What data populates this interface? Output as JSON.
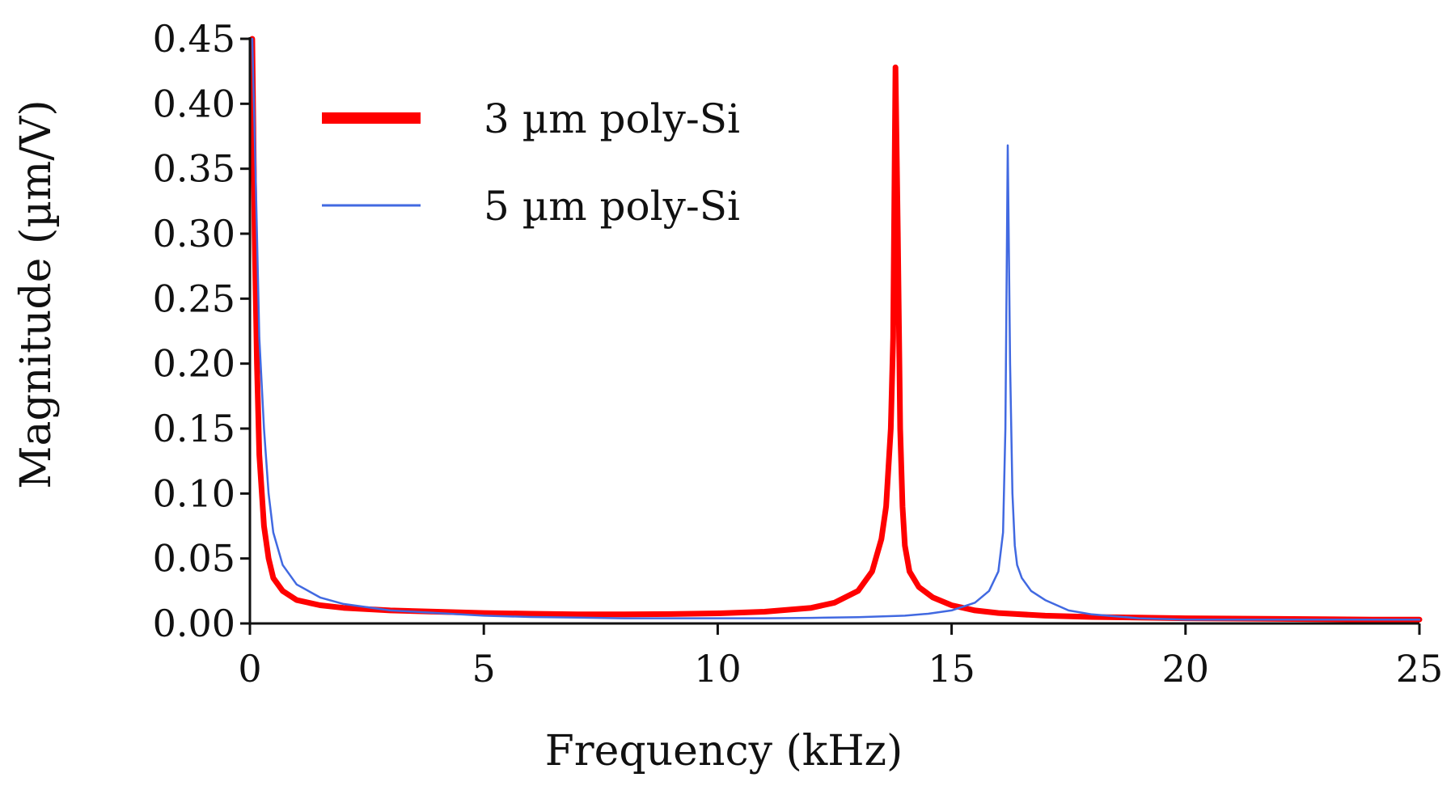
{
  "chart_data": {
    "type": "line",
    "title": "",
    "xlabel": "Frequency (kHz)",
    "ylabel": "Magnitude (µm/V)",
    "xlim": [
      0,
      25
    ],
    "ylim": [
      0,
      0.45
    ],
    "xticks": [
      0,
      5,
      10,
      15,
      20,
      25
    ],
    "xtick_labels": [
      "0",
      "5",
      "10",
      "15",
      "20",
      "25"
    ],
    "yticks": [
      0,
      0.05,
      0.1,
      0.15,
      0.2,
      0.25,
      0.3,
      0.35,
      0.4,
      0.45
    ],
    "ytick_labels": [
      "0.00",
      "0.05",
      "0.10",
      "0.15",
      "0.20",
      "0.25",
      "0.30",
      "0.35",
      "0.40",
      "0.45"
    ],
    "grid": false,
    "legend_position": "top-left",
    "series": [
      {
        "name": "3 µm poly-Si",
        "color": "#ff0000",
        "style": "thick",
        "x": [
          0.05,
          0.1,
          0.15,
          0.2,
          0.3,
          0.4,
          0.5,
          0.7,
          1.0,
          1.5,
          2.0,
          3.0,
          4.0,
          5.0,
          6.0,
          7.0,
          8.0,
          9.0,
          10.0,
          11.0,
          12.0,
          12.5,
          13.0,
          13.3,
          13.5,
          13.6,
          13.7,
          13.75,
          13.8,
          13.85,
          13.9,
          13.95,
          14.0,
          14.1,
          14.3,
          14.6,
          15.0,
          15.5,
          16.0,
          17.0,
          18.0,
          19.0,
          20.0,
          22.0,
          24.0,
          25.0
        ],
        "y": [
          0.45,
          0.3,
          0.2,
          0.13,
          0.075,
          0.05,
          0.035,
          0.025,
          0.018,
          0.014,
          0.012,
          0.01,
          0.009,
          0.008,
          0.0075,
          0.007,
          0.007,
          0.0072,
          0.0078,
          0.009,
          0.012,
          0.016,
          0.025,
          0.04,
          0.065,
          0.09,
          0.15,
          0.22,
          0.428,
          0.3,
          0.15,
          0.09,
          0.06,
          0.04,
          0.028,
          0.02,
          0.014,
          0.01,
          0.008,
          0.006,
          0.005,
          0.0045,
          0.004,
          0.0035,
          0.003,
          0.003
        ]
      },
      {
        "name": "5 µm poly-Si",
        "color": "#4169e1",
        "style": "thin",
        "x": [
          0.05,
          0.1,
          0.15,
          0.2,
          0.3,
          0.4,
          0.5,
          0.7,
          1.0,
          1.5,
          2.0,
          3.0,
          4.0,
          5.0,
          6.0,
          7.0,
          8.0,
          9.0,
          10.0,
          11.0,
          12.0,
          13.0,
          14.0,
          14.5,
          15.0,
          15.5,
          15.8,
          16.0,
          16.1,
          16.15,
          16.2,
          16.25,
          16.3,
          16.35,
          16.4,
          16.5,
          16.7,
          17.0,
          17.5,
          18.0,
          19.0,
          20.0,
          22.0,
          24.0,
          25.0
        ],
        "y": [
          0.45,
          0.38,
          0.3,
          0.22,
          0.15,
          0.1,
          0.07,
          0.045,
          0.03,
          0.02,
          0.015,
          0.01,
          0.008,
          0.006,
          0.005,
          0.0045,
          0.004,
          0.004,
          0.004,
          0.004,
          0.0043,
          0.0048,
          0.006,
          0.0075,
          0.01,
          0.016,
          0.025,
          0.04,
          0.07,
          0.15,
          0.368,
          0.2,
          0.1,
          0.06,
          0.045,
          0.035,
          0.025,
          0.018,
          0.01,
          0.007,
          0.004,
          0.003,
          0.003,
          0.003,
          0.003
        ]
      }
    ]
  }
}
